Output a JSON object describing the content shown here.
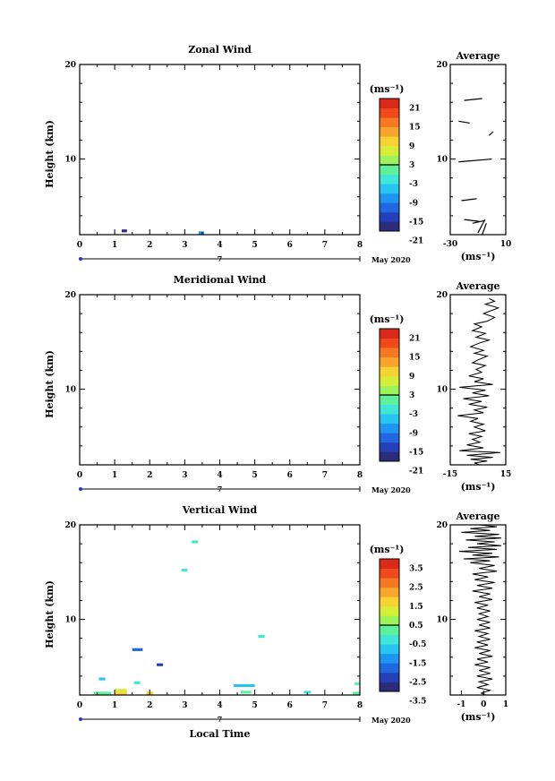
{
  "figure": {
    "month_label": "May 2020",
    "xlabel_bottom": "Local Time",
    "average_title": "Average",
    "unit_label": "(ms⁻¹)",
    "date_marker": "7"
  },
  "chart_data": [
    {
      "type": "heatmap",
      "title": "Zonal Wind",
      "ylabel": "Height (km)",
      "xlim": [
        0,
        8
      ],
      "ylim": [
        2,
        20
      ],
      "x_ticks": [
        "0",
        "1",
        "2",
        "3",
        "4",
        "5",
        "6",
        "7",
        "8"
      ],
      "y_ticks": [
        "10",
        "20"
      ],
      "colorbar": {
        "unit": "(ms⁻¹)",
        "ticks": [
          "21",
          "15",
          "9",
          "3",
          "-3",
          "-9",
          "-15",
          "-21"
        ],
        "range": [
          -24,
          24
        ]
      },
      "cells": [
        {
          "t": 1.2,
          "h": 2.4,
          "w": 0.15,
          "v": -21
        },
        {
          "t": 3.4,
          "h": 2.2,
          "w": 0.15,
          "v": -12
        }
      ],
      "average": {
        "xlabel": "(ms⁻¹)",
        "xlim": [
          -30,
          10
        ],
        "x_ticks": [
          "-30",
          "10"
        ],
        "ylim": [
          2,
          20
        ],
        "y_ticks": [
          "10",
          "20"
        ],
        "segments": [
          [
            [
              -20,
              16.2
            ],
            [
              -7,
              16.4
            ]
          ],
          [
            [
              -24,
              14.0
            ],
            [
              -16,
              13.8
            ]
          ],
          [
            [
              -2,
              12.5
            ],
            [
              1,
              12.9
            ]
          ],
          [
            [
              -24,
              9.7
            ],
            [
              0,
              10.0
            ]
          ],
          [
            [
              -22,
              5.6
            ],
            [
              -11,
              5.8
            ]
          ],
          [
            [
              -20,
              3.6
            ],
            [
              -9,
              3.4
            ]
          ],
          [
            [
              -14,
              3.2
            ],
            [
              -5,
              3.5
            ]
          ],
          [
            [
              -10,
              2.2
            ],
            [
              -5,
              3.6
            ]
          ],
          [
            [
              -7,
              2.0
            ],
            [
              -4,
              3.2
            ]
          ]
        ]
      }
    },
    {
      "type": "heatmap",
      "title": "Meridional Wind",
      "ylabel": "Height (km)",
      "xlim": [
        0,
        8
      ],
      "ylim": [
        2,
        20
      ],
      "x_ticks": [
        "0",
        "1",
        "2",
        "3",
        "4",
        "5",
        "6",
        "7",
        "8"
      ],
      "y_ticks": [
        "10",
        "20"
      ],
      "colorbar": {
        "unit": "(ms⁻¹)",
        "ticks": [
          "21",
          "15",
          "9",
          "3",
          "-3",
          "-9",
          "-15",
          "-21"
        ],
        "range": [
          -24,
          24
        ]
      },
      "cells": [],
      "average": {
        "xlabel": "(ms⁻¹)",
        "xlim": [
          -15,
          15
        ],
        "x_ticks": [
          "-15",
          "15"
        ],
        "ylim": [
          2,
          20
        ],
        "y_ticks": [
          "10",
          "20"
        ],
        "profile": [
          [
            6,
            19.6
          ],
          [
            9,
            19.3
          ],
          [
            4,
            19.0
          ],
          [
            11,
            18.6
          ],
          [
            7,
            18.3
          ],
          [
            3,
            18.0
          ],
          [
            9,
            17.6
          ],
          [
            5,
            17.2
          ],
          [
            -2,
            16.9
          ],
          [
            2,
            16.6
          ],
          [
            -3,
            16.2
          ],
          [
            4,
            15.9
          ],
          [
            -1,
            15.5
          ],
          [
            6,
            15.2
          ],
          [
            1,
            14.9
          ],
          [
            -4,
            14.5
          ],
          [
            3,
            14.1
          ],
          [
            -2,
            13.8
          ],
          [
            5,
            13.5
          ],
          [
            0,
            13.1
          ],
          [
            -3,
            12.8
          ],
          [
            4,
            12.5
          ],
          [
            -1,
            12.1
          ],
          [
            2,
            11.8
          ],
          [
            -5,
            11.4
          ],
          [
            3,
            11.1
          ],
          [
            -2,
            10.8
          ],
          [
            8,
            10.5
          ],
          [
            -10,
            10.2
          ],
          [
            4,
            9.9
          ],
          [
            -3,
            9.6
          ],
          [
            6,
            9.3
          ],
          [
            -8,
            9.0
          ],
          [
            2,
            8.7
          ],
          [
            -5,
            8.4
          ],
          [
            5,
            8.1
          ],
          [
            -2,
            7.8
          ],
          [
            3,
            7.5
          ],
          [
            -11,
            7.2
          ],
          [
            0,
            6.9
          ],
          [
            -4,
            6.6
          ],
          [
            3,
            6.3
          ],
          [
            -2,
            6.0
          ],
          [
            4,
            5.6
          ],
          [
            -5,
            5.3
          ],
          [
            2,
            5.0
          ],
          [
            -3,
            4.7
          ],
          [
            1,
            4.4
          ],
          [
            -6,
            4.1
          ],
          [
            3,
            3.8
          ],
          [
            -10,
            3.5
          ],
          [
            12,
            3.3
          ],
          [
            -6,
            3.0
          ],
          [
            8,
            2.8
          ],
          [
            -4,
            2.6
          ],
          [
            5,
            2.4
          ],
          [
            -2,
            2.2
          ],
          [
            1,
            2.0
          ]
        ]
      }
    },
    {
      "type": "heatmap",
      "title": "Vertical Wind",
      "ylabel": "Height (km)",
      "xlabel": "Local Time",
      "xlim": [
        0,
        8
      ],
      "ylim": [
        2,
        20
      ],
      "x_ticks": [
        "0",
        "1",
        "2",
        "3",
        "4",
        "5",
        "6",
        "7",
        "8"
      ],
      "y_ticks": [
        "10",
        "20"
      ],
      "colorbar": {
        "unit": "(ms⁻¹)",
        "ticks": [
          "3.5",
          "2.5",
          "1.5",
          "0.5",
          "-0.5",
          "-1.5",
          "-2.5",
          "-3.5"
        ],
        "range": [
          -4,
          4
        ]
      },
      "cells": [
        {
          "t": 3.2,
          "h": 18.2,
          "w": 0.18,
          "v": -0.8
        },
        {
          "t": 2.9,
          "h": 15.2,
          "w": 0.18,
          "v": -0.6
        },
        {
          "t": 5.1,
          "h": 8.2,
          "w": 0.18,
          "v": -0.7
        },
        {
          "t": 1.5,
          "h": 6.8,
          "w": 0.3,
          "v": -2.6
        },
        {
          "t": 2.2,
          "h": 5.2,
          "w": 0.18,
          "v": -3.2
        },
        {
          "t": 0.55,
          "h": 3.7,
          "w": 0.18,
          "v": -1.4
        },
        {
          "t": 1.55,
          "h": 3.3,
          "w": 0.18,
          "v": -0.6
        },
        {
          "t": 4.4,
          "h": 3.0,
          "w": 0.6,
          "v": -1.6
        },
        {
          "t": 7.85,
          "h": 3.2,
          "w": 0.15,
          "v": -0.5
        },
        {
          "t": 0.4,
          "h": 2.2,
          "w": 0.5,
          "v": -0.5
        },
        {
          "t": 1.0,
          "h": 2.5,
          "w": 0.35,
          "v": 1.0
        },
        {
          "t": 1.0,
          "h": 2.2,
          "w": 0.35,
          "v": 1.5
        },
        {
          "t": 1.9,
          "h": 2.2,
          "w": 0.2,
          "v": 1.2
        },
        {
          "t": 4.6,
          "h": 2.3,
          "w": 0.3,
          "v": -0.4
        },
        {
          "t": 6.4,
          "h": 2.3,
          "w": 0.2,
          "v": -1.0
        },
        {
          "t": 7.8,
          "h": 2.2,
          "w": 0.2,
          "v": -0.3
        }
      ],
      "average": {
        "xlabel": "(ms⁻¹)",
        "xlim": [
          -1.5,
          1
        ],
        "x_ticks": [
          "-1",
          "0",
          "1"
        ],
        "ylim": [
          2,
          20
        ],
        "y_ticks": [
          "10",
          "20"
        ],
        "profile": [
          [
            -0.2,
            20.0
          ],
          [
            0.6,
            19.8
          ],
          [
            -0.6,
            19.6
          ],
          [
            0.3,
            19.4
          ],
          [
            -1.0,
            19.2
          ],
          [
            0.7,
            19.0
          ],
          [
            -0.4,
            18.8
          ],
          [
            0.8,
            18.6
          ],
          [
            -0.8,
            18.4
          ],
          [
            0.5,
            18.2
          ],
          [
            -0.3,
            18.0
          ],
          [
            0.8,
            17.8
          ],
          [
            -0.7,
            17.6
          ],
          [
            0.6,
            17.4
          ],
          [
            -1.1,
            17.2
          ],
          [
            0.4,
            17.0
          ],
          [
            -0.5,
            16.8
          ],
          [
            0.7,
            16.6
          ],
          [
            -0.9,
            16.4
          ],
          [
            0.3,
            16.2
          ],
          [
            -0.6,
            16.0
          ],
          [
            0.5,
            15.7
          ],
          [
            -0.2,
            15.4
          ],
          [
            0.6,
            15.1
          ],
          [
            -0.5,
            14.8
          ],
          [
            0.2,
            14.5
          ],
          [
            -0.4,
            14.2
          ],
          [
            0.5,
            13.9
          ],
          [
            -0.3,
            13.6
          ],
          [
            0.4,
            13.3
          ],
          [
            -0.5,
            13.0
          ],
          [
            0.3,
            12.7
          ],
          [
            -0.2,
            12.4
          ],
          [
            0.4,
            12.1
          ],
          [
            -0.4,
            11.8
          ],
          [
            0.2,
            11.5
          ],
          [
            -0.3,
            11.2
          ],
          [
            0.3,
            10.9
          ],
          [
            -0.2,
            10.6
          ],
          [
            0.2,
            10.3
          ],
          [
            -0.3,
            10.0
          ],
          [
            0.3,
            9.7
          ],
          [
            -0.2,
            9.4
          ],
          [
            0.3,
            9.1
          ],
          [
            -0.4,
            8.8
          ],
          [
            0.2,
            8.5
          ],
          [
            -0.2,
            8.2
          ],
          [
            0.3,
            7.9
          ],
          [
            -0.3,
            7.6
          ],
          [
            0.2,
            7.3
          ],
          [
            -0.4,
            7.0
          ],
          [
            0.3,
            6.7
          ],
          [
            -0.2,
            6.4
          ],
          [
            0.4,
            6.1
          ],
          [
            -0.3,
            5.8
          ],
          [
            0.2,
            5.5
          ],
          [
            -0.4,
            5.2
          ],
          [
            0.3,
            4.9
          ],
          [
            -0.2,
            4.6
          ],
          [
            0.3,
            4.3
          ],
          [
            -0.3,
            4.0
          ],
          [
            0.4,
            3.7
          ],
          [
            -0.2,
            3.4
          ],
          [
            0.2,
            3.1
          ],
          [
            -0.3,
            2.8
          ],
          [
            0.3,
            2.5
          ],
          [
            -0.1,
            2.2
          ],
          [
            0.1,
            2.0
          ]
        ]
      }
    }
  ]
}
